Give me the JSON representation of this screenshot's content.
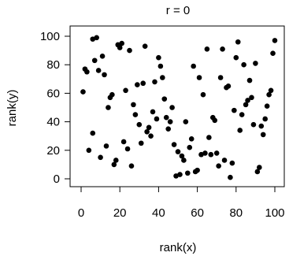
{
  "chart_data": {
    "type": "scatter",
    "title": "r = 0",
    "xlabel": "rank(x)",
    "ylabel": "rank(y)",
    "xlim": [
      0,
      100
    ],
    "ylim": [
      0,
      100
    ],
    "xticks": [
      0,
      20,
      40,
      60,
      80,
      100
    ],
    "yticks": [
      0,
      20,
      40,
      60,
      80,
      100
    ],
    "grid": false,
    "legend": "none",
    "point_color": "#000000",
    "x": [
      1,
      2,
      3,
      4,
      6,
      6,
      7,
      8,
      9,
      10,
      11,
      12,
      13,
      14,
      15,
      16,
      17,
      18,
      19,
      20,
      21,
      22,
      23,
      24,
      25,
      26,
      27,
      28,
      29,
      30,
      31,
      32,
      33,
      34,
      35,
      36,
      37,
      38,
      39,
      40,
      41,
      42,
      43,
      44,
      45,
      46,
      47,
      48,
      49,
      50,
      51,
      52,
      53,
      54,
      55,
      56,
      57,
      58,
      59,
      60,
      61,
      62,
      63,
      64,
      65,
      66,
      67,
      68,
      69,
      70,
      71,
      72,
      73,
      74,
      75,
      76,
      77,
      78,
      79,
      80,
      81,
      82,
      83,
      84,
      85,
      86,
      87,
      88,
      89,
      90,
      91,
      92,
      93,
      94,
      95,
      96,
      97,
      98,
      99,
      100
    ],
    "y": [
      61,
      77,
      75,
      20,
      98,
      32,
      83,
      99,
      76,
      15,
      86,
      73,
      23,
      50,
      57,
      59,
      10,
      13,
      94,
      92,
      95,
      26,
      62,
      21,
      90,
      9,
      52,
      45,
      66,
      38,
      25,
      67,
      93,
      33,
      36,
      30,
      47,
      68,
      42,
      85,
      79,
      71,
      56,
      43,
      35,
      40,
      50,
      24,
      2,
      19,
      3,
      16,
      13,
      40,
      4,
      22,
      28,
      79,
      5,
      6,
      71,
      17,
      59,
      18,
      91,
      29,
      17,
      43,
      41,
      18,
      9,
      71,
      91,
      13,
      64,
      65,
      1,
      11,
      48,
      85,
      96,
      34,
      45,
      80,
      52,
      55,
      69,
      57,
      38,
      81,
      5,
      8,
      37,
      31,
      42,
      51,
      59,
      62,
      88,
      97
    ]
  }
}
